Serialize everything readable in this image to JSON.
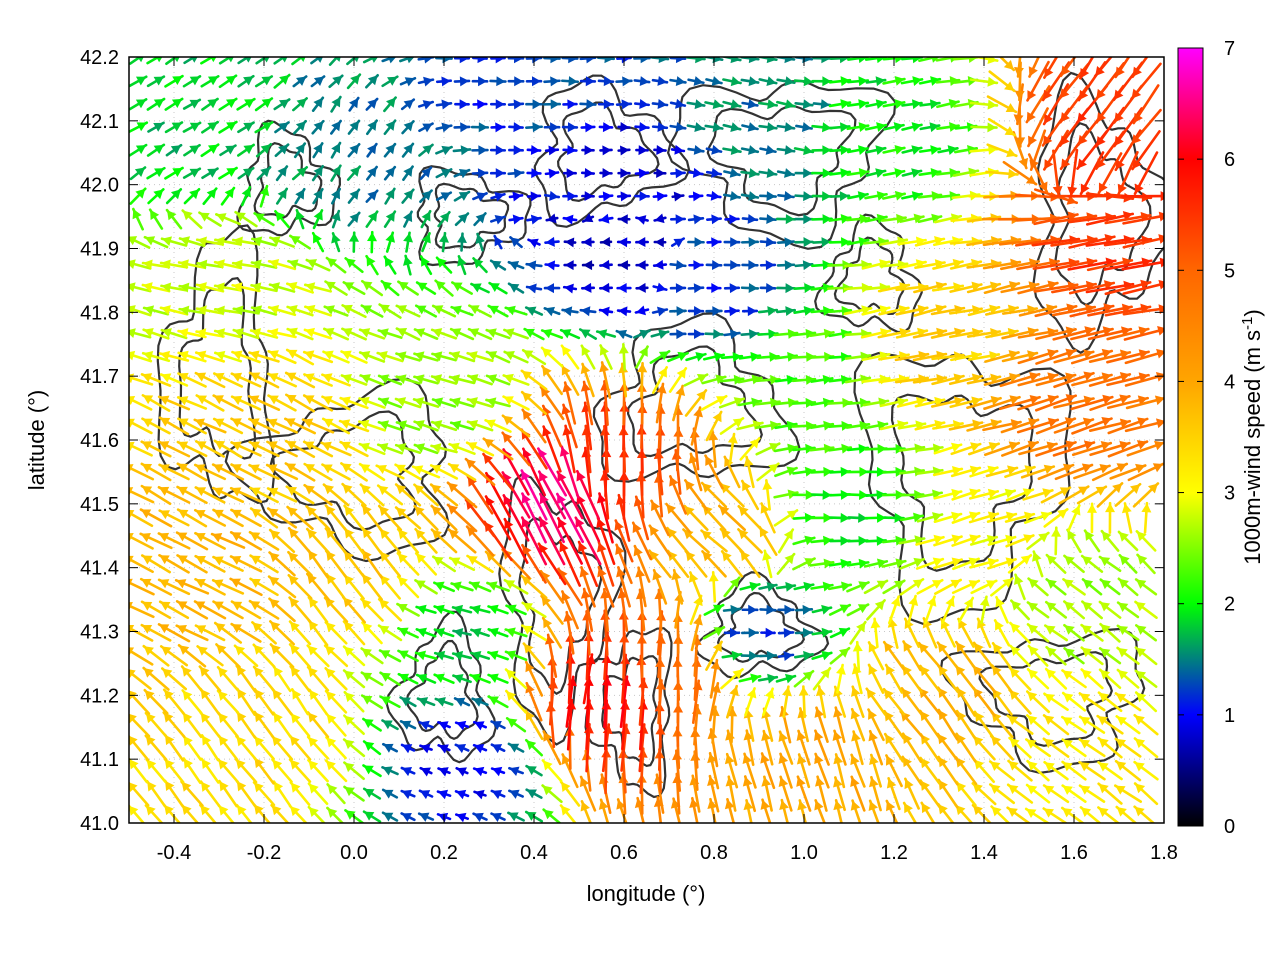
{
  "chart_data": {
    "type": "vector-field",
    "xlabel": "longitude (°)",
    "ylabel": "latitude (°)",
    "xlim": [
      -0.5,
      1.8
    ],
    "ylim": [
      41.0,
      42.2
    ],
    "x_ticks": [
      "-0.4",
      "-0.2",
      "0.0",
      "0.2",
      "0.4",
      "0.6",
      "0.8",
      "1.0",
      "1.2",
      "1.4",
      "1.6",
      "1.8"
    ],
    "y_ticks": [
      "41.0",
      "41.1",
      "41.2",
      "41.3",
      "41.4",
      "41.5",
      "41.6",
      "41.7",
      "41.8",
      "41.9",
      "42.0",
      "42.1",
      "42.2"
    ],
    "grid": true,
    "colorbar": {
      "label_main": "1000m-wind speed (m s",
      "label_sup": "-1",
      "label_end": ")",
      "range": [
        0,
        7
      ],
      "ticks": [
        "0",
        "1",
        "2",
        "3",
        "4",
        "5",
        "6",
        "7"
      ],
      "stops": [
        {
          "v": 0,
          "color": "#000000"
        },
        {
          "v": 1,
          "color": "#0000ff"
        },
        {
          "v": 2,
          "color": "#00ff00"
        },
        {
          "v": 3,
          "color": "#ffff00"
        },
        {
          "v": 4,
          "color": "#ffa500"
        },
        {
          "v": 5,
          "color": "#ff6600"
        },
        {
          "v": 6,
          "color": "#ff0000"
        },
        {
          "v": 7,
          "color": "#ff00ff"
        }
      ]
    },
    "wind_regions": [
      {
        "lon": -0.35,
        "lat": 42.08,
        "speed": 1.8,
        "u": 1.0,
        "v": 0.6
      },
      {
        "lon": 0.0,
        "lat": 42.05,
        "speed": 1.5,
        "u": 0.3,
        "v": 0.4
      },
      {
        "lon": 0.35,
        "lat": 42.15,
        "speed": 1.2,
        "u": 1.0,
        "v": 0.0
      },
      {
        "lon": 0.6,
        "lat": 42.0,
        "speed": 0.9,
        "u": 1.0,
        "v": 0.0
      },
      {
        "lon": 0.6,
        "lat": 41.9,
        "speed": 0.8,
        "u": -1.0,
        "v": 0.0
      },
      {
        "lon": 0.8,
        "lat": 41.85,
        "speed": 1.2,
        "u": 1.0,
        "v": 0.0
      },
      {
        "lon": 0.9,
        "lat": 42.1,
        "speed": 1.5,
        "u": 1.0,
        "v": -0.2
      },
      {
        "lon": 1.2,
        "lat": 42.08,
        "speed": 2.0,
        "u": 1.0,
        "v": 0.2
      },
      {
        "lon": 1.7,
        "lat": 42.1,
        "speed": 5.5,
        "u": -0.6,
        "v": -0.8
      },
      {
        "lon": 1.7,
        "lat": 41.9,
        "speed": 5.5,
        "u": 1.0,
        "v": 0.2
      },
      {
        "lon": 1.6,
        "lat": 41.65,
        "speed": 4.8,
        "u": 1.0,
        "v": 0.3
      },
      {
        "lon": 1.3,
        "lat": 41.75,
        "speed": 3.5,
        "u": 1.0,
        "v": 0.2
      },
      {
        "lon": 1.0,
        "lat": 41.7,
        "speed": 2.2,
        "u": 1.0,
        "v": 0.1
      },
      {
        "lon": 1.1,
        "lat": 41.5,
        "speed": 2.0,
        "u": 1.0,
        "v": 0.0
      },
      {
        "lon": 1.4,
        "lat": 41.45,
        "speed": 3.0,
        "u": 1.0,
        "v": 0.3
      },
      {
        "lon": -0.3,
        "lat": 41.85,
        "speed": 2.8,
        "u": -1.0,
        "v": 0.2
      },
      {
        "lon": -0.2,
        "lat": 41.6,
        "speed": 3.6,
        "u": -1.0,
        "v": 0.5
      },
      {
        "lon": -0.35,
        "lat": 41.4,
        "speed": 3.8,
        "u": -1.0,
        "v": 0.5
      },
      {
        "lon": 0.0,
        "lat": 41.4,
        "speed": 3.6,
        "u": -0.6,
        "v": 0.8
      },
      {
        "lon": -0.2,
        "lat": 41.15,
        "speed": 3.4,
        "u": -0.6,
        "v": 0.8
      },
      {
        "lon": 0.2,
        "lat": 41.65,
        "speed": 2.5,
        "u": -1.0,
        "v": 0.3
      },
      {
        "lon": 0.25,
        "lat": 41.3,
        "speed": 1.8,
        "u": -1.0,
        "v": 0.3
      },
      {
        "lon": 0.25,
        "lat": 41.1,
        "speed": 1.0,
        "u": -1.0,
        "v": 0.4
      },
      {
        "lon": 0.45,
        "lat": 41.5,
        "speed": 6.5,
        "u": -0.5,
        "v": 0.9
      },
      {
        "lon": 0.6,
        "lat": 41.55,
        "speed": 5.5,
        "u": 0.0,
        "v": 1.0
      },
      {
        "lon": 0.55,
        "lat": 41.2,
        "speed": 6.0,
        "u": 0.1,
        "v": 1.0
      },
      {
        "lon": 0.7,
        "lat": 41.25,
        "speed": 5.0,
        "u": 0.0,
        "v": 1.0
      },
      {
        "lon": 0.8,
        "lat": 41.45,
        "speed": 3.8,
        "u": -0.7,
        "v": 0.7
      },
      {
        "lon": 0.9,
        "lat": 41.3,
        "speed": 1.2,
        "u": 1.0,
        "v": 0.0
      },
      {
        "lon": 1.0,
        "lat": 41.1,
        "speed": 4.0,
        "u": -0.3,
        "v": 1.0
      },
      {
        "lon": 1.3,
        "lat": 41.2,
        "speed": 3.8,
        "u": -0.6,
        "v": 0.8
      },
      {
        "lon": 1.6,
        "lat": 41.1,
        "speed": 3.2,
        "u": -0.8,
        "v": 0.6
      },
      {
        "lon": 1.6,
        "lat": 41.35,
        "speed": 2.6,
        "u": -0.8,
        "v": 0.6
      }
    ]
  }
}
